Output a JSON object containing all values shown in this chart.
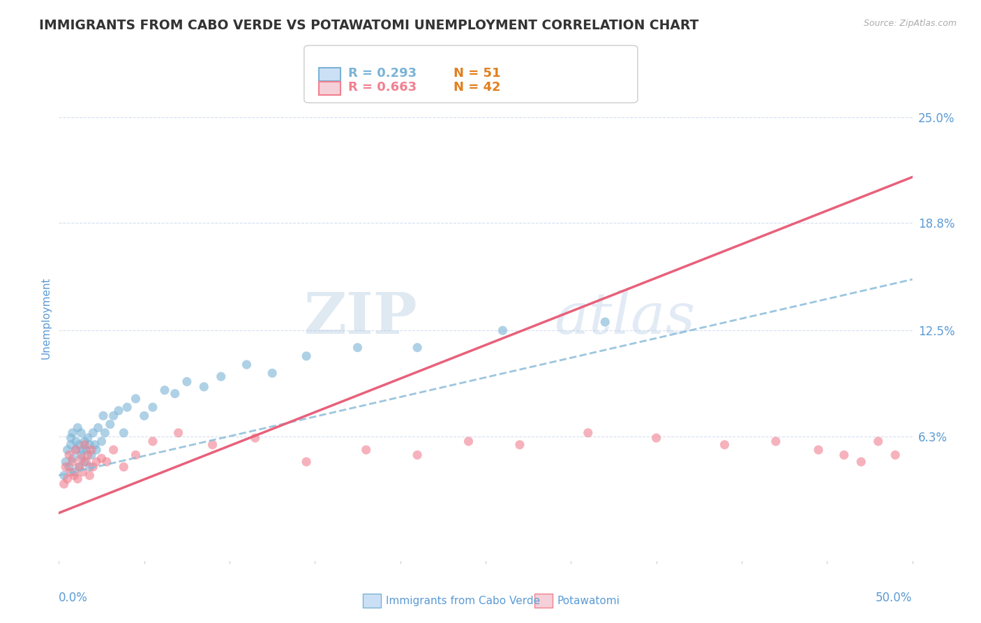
{
  "title": "IMMIGRANTS FROM CABO VERDE VS POTAWATOMI UNEMPLOYMENT CORRELATION CHART",
  "source": "Source: ZipAtlas.com",
  "ylabel": "Unemployment",
  "xlim": [
    0.0,
    0.5
  ],
  "ylim": [
    -0.01,
    0.275
  ],
  "yticks": [
    0.063,
    0.125,
    0.188,
    0.25
  ],
  "ytick_labels": [
    "6.3%",
    "12.5%",
    "18.8%",
    "25.0%"
  ],
  "xtick_left_label": "0.0%",
  "xtick_right_label": "50.0%",
  "legend1_r": "R = 0.293",
  "legend1_n": "N = 51",
  "legend2_r": "R = 0.663",
  "legend2_n": "N = 42",
  "series1_label": "Immigrants from Cabo Verde",
  "series2_label": "Potawatomi",
  "color1": "#7ab3d6",
  "color2": "#f08090",
  "trendline1_color": "#8bbcda",
  "trendline2_color": "#e8607a",
  "background_color": "#ffffff",
  "watermark_zip": "ZIP",
  "watermark_atlas": "atlas",
  "title_color": "#333333",
  "axis_label_color": "#5b9bd5",
  "tick_color": "#5b9bd5",
  "grid_color": "#d5dff0",
  "source_color": "#aaaaaa",
  "series1_x": [
    0.003,
    0.004,
    0.005,
    0.006,
    0.007,
    0.007,
    0.008,
    0.008,
    0.009,
    0.01,
    0.01,
    0.011,
    0.012,
    0.012,
    0.013,
    0.013,
    0.014,
    0.015,
    0.015,
    0.016,
    0.017,
    0.018,
    0.018,
    0.019,
    0.02,
    0.021,
    0.022,
    0.023,
    0.025,
    0.026,
    0.027,
    0.03,
    0.032,
    0.035,
    0.038,
    0.04,
    0.045,
    0.05,
    0.055,
    0.062,
    0.068,
    0.075,
    0.085,
    0.095,
    0.11,
    0.125,
    0.145,
    0.175,
    0.21,
    0.26,
    0.32
  ],
  "series1_y": [
    0.04,
    0.048,
    0.055,
    0.045,
    0.058,
    0.062,
    0.05,
    0.065,
    0.042,
    0.055,
    0.06,
    0.068,
    0.045,
    0.058,
    0.052,
    0.065,
    0.055,
    0.048,
    0.06,
    0.055,
    0.062,
    0.045,
    0.058,
    0.052,
    0.065,
    0.058,
    0.055,
    0.068,
    0.06,
    0.075,
    0.065,
    0.07,
    0.075,
    0.078,
    0.065,
    0.08,
    0.085,
    0.075,
    0.08,
    0.09,
    0.088,
    0.095,
    0.092,
    0.098,
    0.105,
    0.1,
    0.11,
    0.115,
    0.115,
    0.125,
    0.13
  ],
  "series2_x": [
    0.003,
    0.004,
    0.005,
    0.006,
    0.007,
    0.008,
    0.009,
    0.01,
    0.011,
    0.012,
    0.013,
    0.014,
    0.015,
    0.016,
    0.017,
    0.018,
    0.019,
    0.02,
    0.022,
    0.025,
    0.028,
    0.032,
    0.038,
    0.045,
    0.055,
    0.07,
    0.09,
    0.115,
    0.145,
    0.18,
    0.21,
    0.24,
    0.27,
    0.31,
    0.35,
    0.39,
    0.42,
    0.445,
    0.46,
    0.47,
    0.48,
    0.49
  ],
  "series2_y": [
    0.035,
    0.045,
    0.038,
    0.052,
    0.042,
    0.048,
    0.04,
    0.055,
    0.038,
    0.045,
    0.05,
    0.042,
    0.058,
    0.048,
    0.052,
    0.04,
    0.055,
    0.045,
    0.048,
    0.05,
    0.048,
    0.055,
    0.045,
    0.052,
    0.06,
    0.065,
    0.058,
    0.062,
    0.048,
    0.055,
    0.052,
    0.06,
    0.058,
    0.065,
    0.062,
    0.058,
    0.06,
    0.055,
    0.052,
    0.048,
    0.06,
    0.052
  ],
  "trendline1_start_x": 0.0,
  "trendline1_end_x": 0.5,
  "trendline1_start_y": 0.04,
  "trendline1_end_y": 0.155,
  "trendline2_start_x": 0.0,
  "trendline2_end_x": 0.5,
  "trendline2_start_y": 0.018,
  "trendline2_end_y": 0.215
}
